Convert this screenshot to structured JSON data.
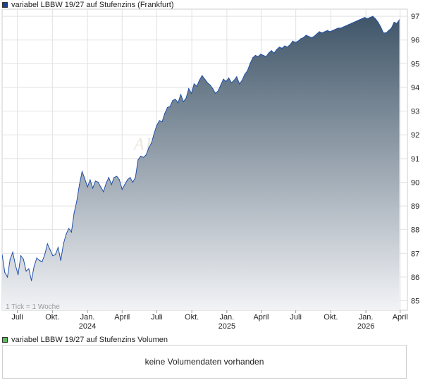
{
  "legend": {
    "price_series": "variabel LBBW 19/27 auf Stufenzins (Frankfurt)",
    "volume_series": "variabel LBBW 19/27 auf Stufenzins Volumen",
    "price_color": "#1f3f8f",
    "volume_color": "#5fb95f"
  },
  "volume_panel": {
    "message": "keine Volumendaten vorhanden"
  },
  "chart_data": {
    "type": "area",
    "title": "variabel LBBW 19/27 auf Stufenzins (Frankfurt)",
    "tick_note": "1 Tick = 1 Woche",
    "watermark": "AKTIE",
    "x_tick_labels": [
      {
        "label": "Juli",
        "year": ""
      },
      {
        "label": "Okt.",
        "year": ""
      },
      {
        "label": "Jan.",
        "year": "2024"
      },
      {
        "label": "April",
        "year": ""
      },
      {
        "label": "Juli",
        "year": ""
      },
      {
        "label": "Okt.",
        "year": ""
      },
      {
        "label": "Jan.",
        "year": "2025"
      },
      {
        "label": "April",
        "year": ""
      },
      {
        "label": "Juli",
        "year": ""
      },
      {
        "label": "Okt.",
        "year": ""
      },
      {
        "label": "Jan.",
        "year": "2026"
      },
      {
        "label": "April",
        "year": ""
      }
    ],
    "y_ticks": [
      85,
      86,
      87,
      88,
      89,
      90,
      91,
      92,
      93,
      94,
      95,
      96,
      97
    ],
    "ylim": [
      84.6,
      97.3
    ],
    "xlim": [
      "2023-05-22",
      "2026-04-20"
    ],
    "line_color": "#2050a8",
    "fill_top_color": "#3f5568",
    "fill_bottom_color": "#f2f3f6",
    "grid": true,
    "series": [
      {
        "values": [
          [
            "2023-05-22",
            86.95
          ],
          [
            "2023-05-29",
            86.2
          ],
          [
            "2023-06-05",
            86.0
          ],
          [
            "2023-06-12",
            86.75
          ],
          [
            "2023-06-19",
            87.05
          ],
          [
            "2023-06-26",
            86.5
          ],
          [
            "2023-07-03",
            86.1
          ],
          [
            "2023-07-10",
            86.9
          ],
          [
            "2023-07-17",
            86.75
          ],
          [
            "2023-07-24",
            86.25
          ],
          [
            "2023-07-31",
            86.35
          ],
          [
            "2023-08-07",
            85.85
          ],
          [
            "2023-08-14",
            86.45
          ],
          [
            "2023-08-21",
            86.8
          ],
          [
            "2023-08-28",
            86.7
          ],
          [
            "2023-09-04",
            86.65
          ],
          [
            "2023-09-11",
            86.95
          ],
          [
            "2023-09-18",
            87.4
          ],
          [
            "2023-09-25",
            87.15
          ],
          [
            "2023-10-02",
            86.9
          ],
          [
            "2023-10-09",
            86.95
          ],
          [
            "2023-10-16",
            87.25
          ],
          [
            "2023-10-23",
            86.7
          ],
          [
            "2023-10-30",
            87.4
          ],
          [
            "2023-11-06",
            87.8
          ],
          [
            "2023-11-13",
            88.05
          ],
          [
            "2023-11-20",
            87.9
          ],
          [
            "2023-11-27",
            88.7
          ],
          [
            "2023-12-04",
            89.2
          ],
          [
            "2023-12-11",
            89.9
          ],
          [
            "2023-12-18",
            90.45
          ],
          [
            "2023-12-25",
            90.15
          ],
          [
            "2024-01-01",
            89.8
          ],
          [
            "2024-01-08",
            90.1
          ],
          [
            "2024-01-15",
            89.75
          ],
          [
            "2024-01-22",
            90.05
          ],
          [
            "2024-01-29",
            90.0
          ],
          [
            "2024-02-05",
            89.8
          ],
          [
            "2024-02-12",
            89.6
          ],
          [
            "2024-02-19",
            89.95
          ],
          [
            "2024-02-26",
            90.2
          ],
          [
            "2024-03-04",
            89.9
          ],
          [
            "2024-03-11",
            90.2
          ],
          [
            "2024-03-18",
            90.25
          ],
          [
            "2024-03-25",
            90.1
          ],
          [
            "2024-04-01",
            89.7
          ],
          [
            "2024-04-08",
            89.9
          ],
          [
            "2024-04-15",
            90.1
          ],
          [
            "2024-04-22",
            90.2
          ],
          [
            "2024-04-29",
            90.0
          ],
          [
            "2024-05-06",
            90.2
          ],
          [
            "2024-05-13",
            90.95
          ],
          [
            "2024-05-20",
            91.1
          ],
          [
            "2024-05-27",
            91.05
          ],
          [
            "2024-06-03",
            91.15
          ],
          [
            "2024-06-10",
            91.45
          ],
          [
            "2024-06-17",
            91.65
          ],
          [
            "2024-06-24",
            92.05
          ],
          [
            "2024-07-01",
            92.4
          ],
          [
            "2024-07-08",
            92.6
          ],
          [
            "2024-07-15",
            92.55
          ],
          [
            "2024-07-22",
            92.9
          ],
          [
            "2024-07-29",
            93.15
          ],
          [
            "2024-08-05",
            93.2
          ],
          [
            "2024-08-12",
            93.45
          ],
          [
            "2024-08-19",
            93.5
          ],
          [
            "2024-08-26",
            93.35
          ],
          [
            "2024-09-02",
            93.7
          ],
          [
            "2024-09-09",
            93.4
          ],
          [
            "2024-09-16",
            93.55
          ],
          [
            "2024-09-23",
            93.95
          ],
          [
            "2024-09-30",
            93.75
          ],
          [
            "2024-10-07",
            94.15
          ],
          [
            "2024-10-14",
            94.05
          ],
          [
            "2024-10-21",
            94.3
          ],
          [
            "2024-10-28",
            94.5
          ],
          [
            "2024-11-04",
            94.35
          ],
          [
            "2024-11-11",
            94.2
          ],
          [
            "2024-11-18",
            94.1
          ],
          [
            "2024-11-25",
            93.95
          ],
          [
            "2024-12-02",
            93.75
          ],
          [
            "2024-12-09",
            93.85
          ],
          [
            "2024-12-16",
            94.1
          ],
          [
            "2024-12-23",
            94.35
          ],
          [
            "2024-12-30",
            94.25
          ],
          [
            "2025-01-06",
            94.4
          ],
          [
            "2025-01-13",
            94.2
          ],
          [
            "2025-01-20",
            94.3
          ],
          [
            "2025-01-27",
            94.45
          ],
          [
            "2025-02-03",
            94.15
          ],
          [
            "2025-02-10",
            94.3
          ],
          [
            "2025-02-17",
            94.55
          ],
          [
            "2025-02-24",
            94.7
          ],
          [
            "2025-03-03",
            95.0
          ],
          [
            "2025-03-10",
            95.25
          ],
          [
            "2025-03-17",
            95.35
          ],
          [
            "2025-03-24",
            95.3
          ],
          [
            "2025-03-31",
            95.4
          ],
          [
            "2025-04-07",
            95.35
          ],
          [
            "2025-04-14",
            95.3
          ],
          [
            "2025-04-21",
            95.45
          ],
          [
            "2025-04-28",
            95.55
          ],
          [
            "2025-05-05",
            95.45
          ],
          [
            "2025-05-12",
            95.6
          ],
          [
            "2025-05-19",
            95.7
          ],
          [
            "2025-05-26",
            95.65
          ],
          [
            "2025-06-02",
            95.75
          ],
          [
            "2025-06-09",
            95.7
          ],
          [
            "2025-06-16",
            95.8
          ],
          [
            "2025-06-23",
            95.95
          ],
          [
            "2025-06-30",
            95.9
          ],
          [
            "2025-07-07",
            95.95
          ],
          [
            "2025-07-14",
            96.05
          ],
          [
            "2025-07-21",
            96.1
          ],
          [
            "2025-07-28",
            96.2
          ],
          [
            "2025-08-04",
            96.15
          ],
          [
            "2025-08-11",
            96.1
          ],
          [
            "2025-08-18",
            96.15
          ],
          [
            "2025-08-25",
            96.25
          ],
          [
            "2025-09-01",
            96.35
          ],
          [
            "2025-09-08",
            96.3
          ],
          [
            "2025-09-15",
            96.35
          ],
          [
            "2025-09-22",
            96.4
          ],
          [
            "2025-09-29",
            96.35
          ],
          [
            "2025-10-06",
            96.4
          ],
          [
            "2025-10-13",
            96.45
          ],
          [
            "2025-10-20",
            96.5
          ],
          [
            "2025-10-27",
            96.5
          ],
          [
            "2025-11-03",
            96.55
          ],
          [
            "2025-11-10",
            96.6
          ],
          [
            "2025-11-17",
            96.65
          ],
          [
            "2025-11-24",
            96.7
          ],
          [
            "2025-12-01",
            96.75
          ],
          [
            "2025-12-08",
            96.8
          ],
          [
            "2025-12-15",
            96.85
          ],
          [
            "2025-12-22",
            96.9
          ],
          [
            "2025-12-29",
            96.95
          ],
          [
            "2026-01-05",
            96.9
          ],
          [
            "2026-01-12",
            96.95
          ],
          [
            "2026-01-19",
            97.0
          ],
          [
            "2026-01-26",
            96.9
          ],
          [
            "2026-02-02",
            96.75
          ],
          [
            "2026-02-09",
            96.55
          ],
          [
            "2026-02-16",
            96.3
          ],
          [
            "2026-02-23",
            96.3
          ],
          [
            "2026-03-02",
            96.4
          ],
          [
            "2026-03-09",
            96.5
          ],
          [
            "2026-03-16",
            96.75
          ],
          [
            "2026-03-23",
            96.7
          ],
          [
            "2026-03-30",
            96.85
          ]
        ]
      }
    ]
  }
}
